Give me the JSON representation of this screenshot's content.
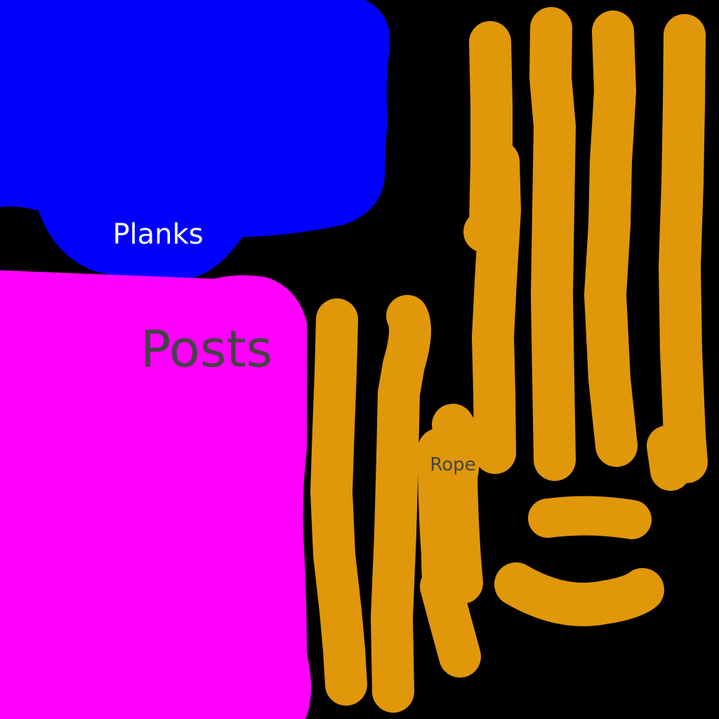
{
  "labels": {
    "planks": "Planks",
    "posts": "Posts",
    "rope": "Rope"
  },
  "colors": {
    "background": "#000000",
    "planks": "#0000FF",
    "posts": "#FF00FF",
    "rope": "#E0970A",
    "planks_text": "#FFFFFF",
    "label_text": "#444444"
  }
}
